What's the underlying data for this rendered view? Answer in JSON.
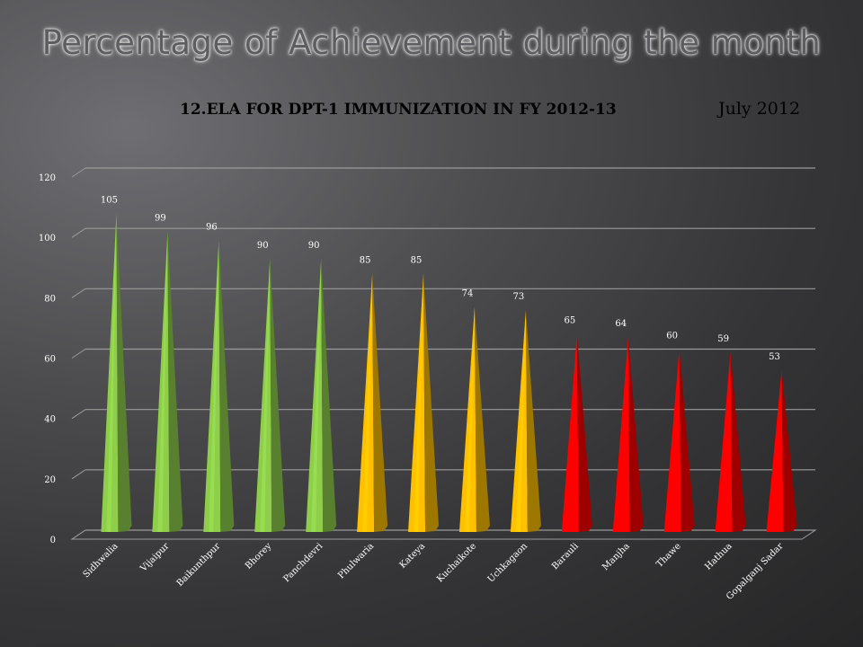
{
  "slide": {
    "title": "Percentage of Achievement during the month",
    "chart_title": "12.ELA FOR DPT-1 IMMUNIZATION  IN FY 2012-13",
    "period": "July 2012"
  },
  "colors": {
    "green": "#8fce4a",
    "yellow": "#ffc000",
    "red": "#ff0000",
    "gridline": "#9a9a9a"
  },
  "chart_data": {
    "type": "bar",
    "bar_shape": "cone",
    "title": "12.ELA FOR DPT-1 IMMUNIZATION  IN FY 2012-13",
    "xlabel": "",
    "ylabel": "",
    "ylim": [
      0,
      120
    ],
    "yticks": [
      0,
      20,
      40,
      60,
      80,
      100,
      120
    ],
    "grid": true,
    "categories": [
      "Sidhwalia",
      "Vijaipur",
      "Baikunthpur",
      "Bhorey",
      "Panchdevri",
      "Phulwaria",
      "Kateya",
      "Kuchaikote",
      "Uchkagaon",
      "Barauli",
      "Manjha",
      "Thawe",
      "Hathua",
      "Gopalganj Sadar"
    ],
    "values": [
      105,
      99,
      96,
      90,
      90,
      85,
      85,
      74,
      73,
      65,
      64,
      60,
      59,
      53
    ],
    "bar_colors": [
      "green",
      "green",
      "green",
      "green",
      "green",
      "yellow",
      "yellow",
      "yellow",
      "yellow",
      "red",
      "red",
      "red",
      "red",
      "red"
    ]
  }
}
